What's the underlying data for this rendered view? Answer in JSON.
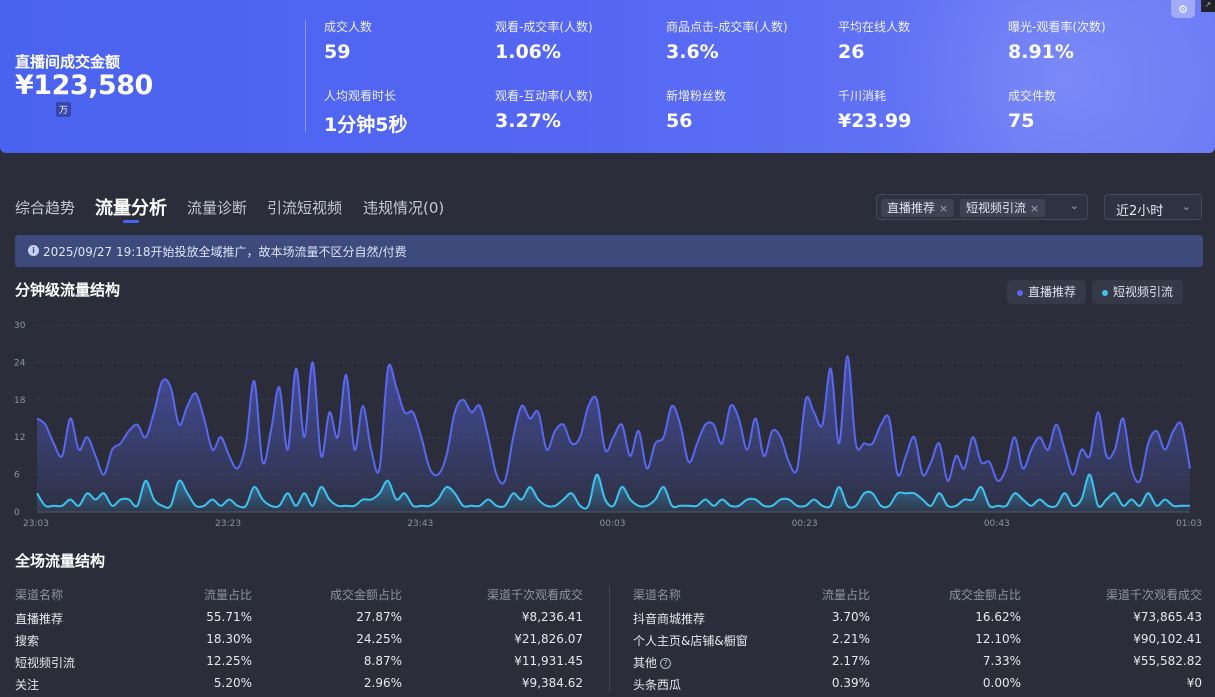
{
  "header": {
    "gmv_label": "直播间成交金额",
    "gmv_value": "¥123,580",
    "gmv_unit": "万",
    "metrics": [
      {
        "label": "成交人数",
        "value": "59"
      },
      {
        "label": "观看-成交率(人数)",
        "value": "1.06%"
      },
      {
        "label": "商品点击-成交率(人数)",
        "value": "3.6%"
      },
      {
        "label": "平均在线人数",
        "value": "26"
      },
      {
        "label": "曝光-观看率(次数)",
        "value": "8.91%"
      },
      {
        "label": "人均观看时长",
        "value": "1分钟5秒"
      },
      {
        "label": "观看-互动率(人数)",
        "value": "3.27%"
      },
      {
        "label": "新增粉丝数",
        "value": "56"
      },
      {
        "label": "千川消耗",
        "value": "¥23.99"
      },
      {
        "label": "成交件数",
        "value": "75"
      }
    ]
  },
  "tabs": [
    "综合趋势",
    "流量分析",
    "流量诊断",
    "引流短视频",
    "违规情况(0)"
  ],
  "active_tab": 1,
  "filters": {
    "chips": [
      "直播推荐",
      "短视频引流"
    ],
    "range": "近2小时"
  },
  "notice": "2025/09/27 19:18开始投放全域推广，故本场流量不区分自然/付费",
  "colors": {
    "series_primary": "#5a67f0",
    "series_secondary": "#3ec3f0",
    "accent": "#4a63ef"
  },
  "chart_data": {
    "type": "area",
    "title": "分钟级流量结构",
    "legend": "top-right",
    "ylim": [
      0,
      30
    ],
    "y_ticks": [
      "0",
      "6",
      "12",
      "18",
      "24",
      "30"
    ],
    "x_ticks": [
      "23:03",
      "23:23",
      "23:43",
      "00:03",
      "00:23",
      "00:43",
      "01:03"
    ],
    "x_start": "23:03",
    "x_end": "01:03",
    "grid": true,
    "series": [
      {
        "name": "直播推荐",
        "values": [
          15,
          14,
          11,
          9,
          15,
          10,
          12,
          9,
          6,
          10,
          11,
          13,
          14,
          12,
          16,
          21,
          20,
          14,
          17,
          19,
          15,
          10,
          12,
          9,
          7,
          11,
          21,
          8,
          13,
          20,
          10,
          23,
          12,
          24,
          9,
          16,
          12,
          22,
          10,
          17,
          10,
          7,
          23,
          20,
          16,
          16,
          12,
          7,
          6,
          9,
          16,
          18,
          16,
          17,
          12,
          6,
          5,
          12,
          17,
          15,
          16,
          10,
          13,
          14,
          11,
          12,
          17,
          18,
          10,
          12,
          14,
          9,
          13,
          7,
          11,
          12,
          17,
          14,
          8,
          11,
          14,
          14,
          11,
          17,
          15,
          10,
          15,
          9,
          13,
          12,
          8,
          7,
          18,
          16,
          14,
          23,
          11,
          25,
          11,
          11,
          11,
          14,
          15,
          6,
          9,
          12,
          6,
          8,
          11,
          5,
          9,
          7,
          12,
          8,
          8,
          5,
          7,
          12,
          7,
          10,
          12,
          10,
          14,
          10,
          6,
          10,
          9,
          16,
          9,
          10,
          15,
          7,
          5,
          11,
          13,
          10,
          13,
          14,
          7
        ]
      },
      {
        "name": "短视频引流",
        "values": [
          3,
          1,
          1,
          1,
          2,
          1,
          3,
          2,
          3,
          1,
          2,
          2,
          1,
          5,
          2,
          1,
          1,
          5,
          3,
          1,
          1,
          2,
          1,
          2,
          1,
          1,
          4,
          2,
          1,
          1,
          3,
          1,
          3,
          1,
          4,
          2,
          1,
          1,
          1,
          2,
          2,
          3,
          5,
          2,
          3,
          1,
          1,
          1,
          2,
          4,
          3,
          1,
          1,
          1,
          2,
          1,
          1,
          3,
          2,
          4,
          2,
          1,
          1,
          2,
          3,
          1,
          1,
          6,
          2,
          1,
          4,
          2,
          1,
          1,
          2,
          4,
          1,
          1,
          1,
          1,
          2,
          1,
          2,
          1,
          1,
          2,
          2,
          1,
          1,
          2,
          2,
          1,
          1,
          2,
          1,
          1,
          4,
          1,
          1,
          3,
          3,
          1,
          1,
          3,
          3,
          3,
          2,
          1,
          3,
          1,
          1,
          2,
          2,
          4,
          1,
          1,
          1,
          3,
          2,
          1,
          2,
          1,
          1,
          3,
          1,
          2,
          6,
          1,
          2,
          3,
          1,
          2,
          1,
          3,
          1,
          2,
          1,
          1,
          1
        ]
      }
    ]
  },
  "table": {
    "title": "全场流量结构",
    "headers": [
      "渠道名称",
      "流量占比",
      "成交金额占比",
      "渠道千次观看成交"
    ],
    "left": [
      [
        "直播推荐",
        "55.71%",
        "27.87%",
        "¥8,236.41"
      ],
      [
        "搜索",
        "18.30%",
        "24.25%",
        "¥21,826.07"
      ],
      [
        "短视频引流",
        "12.25%",
        "8.87%",
        "¥11,931.45"
      ],
      [
        "关注",
        "5.20%",
        "2.96%",
        "¥9,384.62"
      ]
    ],
    "right": [
      [
        "抖音商城推荐",
        "3.70%",
        "16.62%",
        "¥73,865.43"
      ],
      [
        "个人主页&店铺&橱窗",
        "2.21%",
        "12.10%",
        "¥90,102.41"
      ],
      [
        "其他",
        "2.17%",
        "7.33%",
        "¥55,582.82"
      ],
      [
        "头条西瓜",
        "0.39%",
        "0.00%",
        "¥0"
      ]
    ]
  }
}
